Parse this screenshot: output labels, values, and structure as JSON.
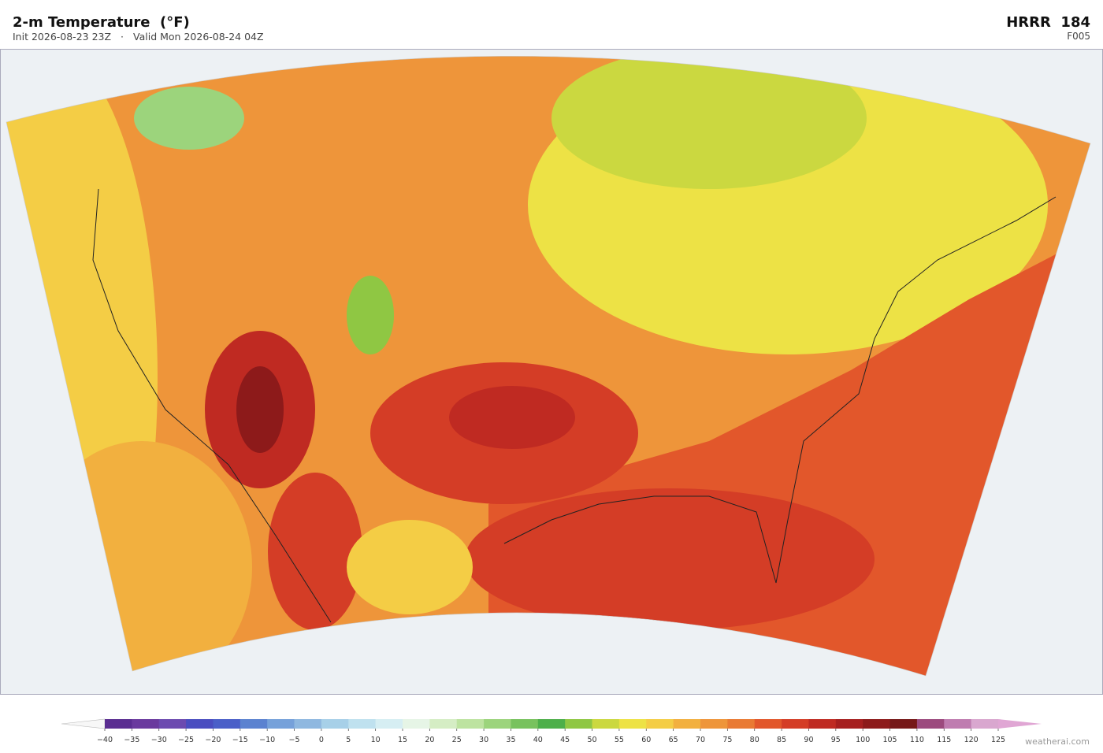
{
  "header": {
    "title": "2-m Temperature  (°F)",
    "init": "Init 2026-08-23 23Z",
    "separator": "·",
    "valid": "Valid Mon 2026-08-24 04Z",
    "model": "HRRR  184",
    "forecast_hour": "F005"
  },
  "colorbar": {
    "ticks": [
      "−40",
      "−35",
      "−30",
      "−25",
      "−20",
      "−15",
      "−10",
      "−5",
      "0",
      "5",
      "10",
      "15",
      "20",
      "25",
      "30",
      "35",
      "40",
      "45",
      "50",
      "55",
      "60",
      "65",
      "70",
      "75",
      "80",
      "85",
      "90",
      "95",
      "100",
      "105",
      "110",
      "115",
      "120",
      "125"
    ],
    "colors": [
      "#5a2d91",
      "#6a3a9e",
      "#6c4ab0",
      "#4a4dc0",
      "#4a5fc8",
      "#5b82d0",
      "#76a1da",
      "#8fb8e0",
      "#a7d0e8",
      "#bfe1ef",
      "#d6eef3",
      "#e6f5e6",
      "#d5edc4",
      "#bde3a0",
      "#9cd47c",
      "#78c25e",
      "#4daf4a",
      "#8fc743",
      "#cbd840",
      "#ede245",
      "#f4cd45",
      "#f2b03f",
      "#ee953a",
      "#e97a33",
      "#e2572b",
      "#d43d26",
      "#bf2a22",
      "#a61f1f",
      "#8d1a1a",
      "#761818",
      "#9c4a7e",
      "#bf7cb0",
      "#d9a7cf"
    ],
    "under_color": "#f7f7f7",
    "over_color": "#e0a6d4"
  },
  "credit": "weatherai.com"
}
